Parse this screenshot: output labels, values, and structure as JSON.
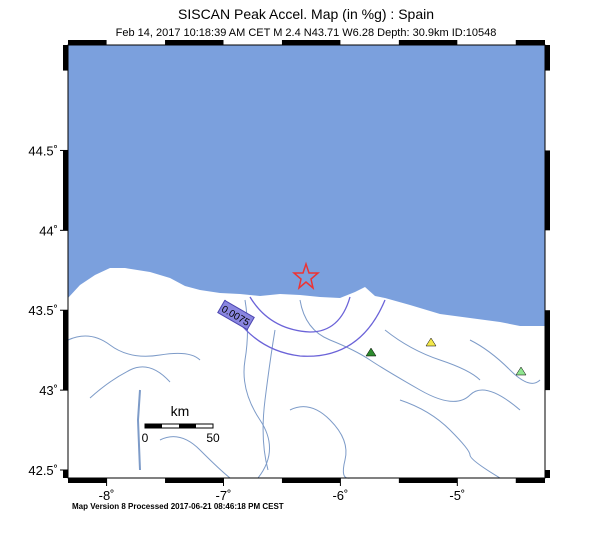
{
  "map": {
    "title": "SISCAN Peak Accel. Map (in %g) : Spain",
    "subtitle": "Feb 14, 2017 10:18:39 AM CET   M 2.4   N43.71 W6.28   Depth: 30.9km   ID:10548",
    "lonlim": [
      -8.33,
      -4.25
    ],
    "latlim": [
      42.45,
      45.16
    ],
    "lat_ticks": [
      {
        "value": 44.5,
        "label": "44.5˚"
      },
      {
        "value": 44,
        "label": "44˚"
      },
      {
        "value": 43.5,
        "label": "43.5˚"
      },
      {
        "value": 43,
        "label": "43˚"
      },
      {
        "value": 42.5,
        "label": "42.5˚"
      }
    ],
    "lon_ticks": [
      {
        "value": -8,
        "label": "-8˚"
      },
      {
        "value": -7,
        "label": "-7˚"
      },
      {
        "value": -6,
        "label": "-6˚"
      },
      {
        "value": -5,
        "label": "-5˚"
      }
    ],
    "contour_label": "0.0075",
    "scale_bar": {
      "unit": "km",
      "start": "0",
      "end": "50"
    },
    "footer": "Map Version 8 Processed 2017-06-21 08:46:18 PM CEST"
  }
}
